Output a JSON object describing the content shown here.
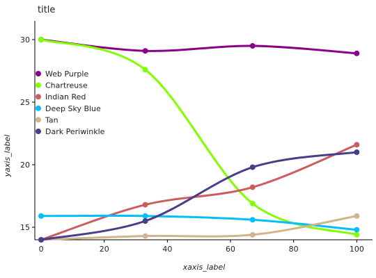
{
  "chart_data": {
    "type": "line",
    "title": "title",
    "xlabel": "xaxis_label",
    "ylabel": "yaxis_label",
    "xlim": [
      -2,
      105
    ],
    "ylim": [
      14.0,
      31.5
    ],
    "xticks": [
      0,
      20,
      40,
      60,
      80,
      100
    ],
    "yticks": [
      15,
      20,
      25,
      30
    ],
    "grid": false,
    "legend_position": "middle-left",
    "series": [
      {
        "name": "Web Purple",
        "color": "#8b008b",
        "x": [
          0,
          33,
          67,
          100
        ],
        "y": [
          30.0,
          29.1,
          29.5,
          28.9
        ]
      },
      {
        "name": "Chartreuse",
        "color": "#7fff00",
        "x": [
          0,
          33,
          67,
          100
        ],
        "y": [
          30.0,
          27.6,
          16.9,
          14.4
        ]
      },
      {
        "name": "Indian Red",
        "color": "#cd5c5c",
        "x": [
          0,
          33,
          67,
          100
        ],
        "y": [
          14.0,
          16.8,
          18.2,
          21.6
        ]
      },
      {
        "name": "Deep Sky Blue",
        "color": "#00bfff",
        "x": [
          0,
          33,
          67,
          100
        ],
        "y": [
          15.9,
          15.9,
          15.6,
          14.8
        ]
      },
      {
        "name": "Tan",
        "color": "#d2b48c",
        "x": [
          0,
          33,
          67,
          100
        ],
        "y": [
          14.0,
          14.3,
          14.4,
          15.9
        ]
      },
      {
        "name": "Dark Periwinkle",
        "color": "#483d8b",
        "x": [
          0,
          33,
          67,
          100
        ],
        "y": [
          14.0,
          15.5,
          19.8,
          21.0
        ]
      }
    ]
  }
}
